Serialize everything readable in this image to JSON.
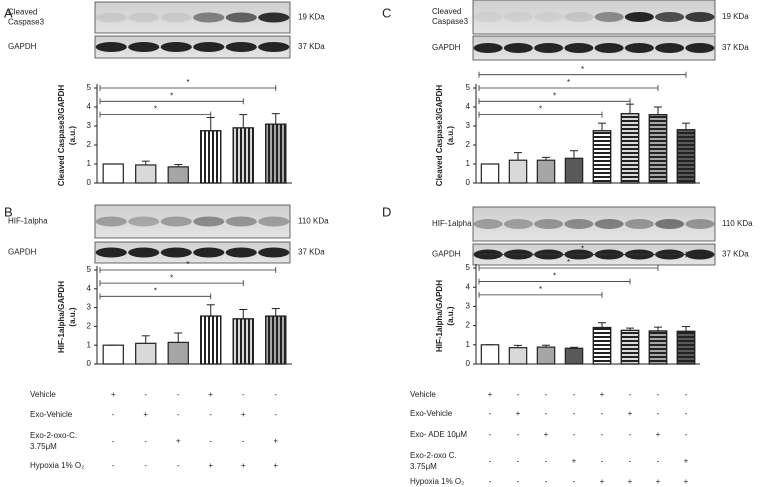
{
  "chart_data": [
    {
      "type": "bar",
      "panel": "A",
      "ylabel": "Cleaved Caspase3/GAPDH",
      "ylabel_unit": "(a.u.)",
      "categories": [
        null,
        null,
        null,
        null,
        null,
        null
      ],
      "values": [
        1,
        0.95,
        0.85,
        2.75,
        2.9,
        3.1
      ],
      "errors": [
        0,
        0.2,
        0.12,
        0.7,
        0.7,
        0.55
      ],
      "colors": [
        "#ffffff",
        "#d9d9d9",
        "#a6a6a6",
        "#ffffff",
        "#d9d9d9",
        "#a6a6a6"
      ],
      "hatched": [
        false,
        false,
        false,
        true,
        true,
        true
      ],
      "hatch": "vertical",
      "ylim": [
        0,
        5
      ],
      "yticks": [
        0,
        1,
        2,
        3,
        4,
        5
      ],
      "significance": [
        {
          "label": "*",
          "bars": [
            0,
            3
          ]
        },
        {
          "label": "*",
          "bars": [
            0,
            4
          ]
        },
        {
          "label": "*",
          "bars": [
            0,
            5
          ]
        }
      ],
      "blots": [
        {
          "label": [
            "Cleaved",
            "Caspase3"
          ],
          "size": "19 KDa"
        },
        {
          "label": [
            "GAPDH"
          ],
          "size": "37 KDa"
        }
      ]
    },
    {
      "type": "bar",
      "panel": "B",
      "ylabel": "HIF-1alpha/GAPDH",
      "ylabel_unit": "(a.u.)",
      "categories": [
        null,
        null,
        null,
        null,
        null,
        null
      ],
      "values": [
        1,
        1.1,
        1.15,
        2.55,
        2.4,
        2.55
      ],
      "errors": [
        0,
        0.4,
        0.5,
        0.6,
        0.5,
        0.4
      ],
      "colors": [
        "#ffffff",
        "#d9d9d9",
        "#a6a6a6",
        "#ffffff",
        "#d9d9d9",
        "#a6a6a6"
      ],
      "hatched": [
        false,
        false,
        false,
        true,
        true,
        true
      ],
      "hatch": "vertical",
      "ylim": [
        0,
        5
      ],
      "yticks": [
        0,
        1,
        2,
        3,
        4,
        5
      ],
      "significance": [
        {
          "label": "*",
          "bars": [
            0,
            3
          ]
        },
        {
          "label": "*",
          "bars": [
            0,
            4
          ]
        },
        {
          "label": "*",
          "bars": [
            0,
            5
          ]
        }
      ],
      "blots": [
        {
          "label": [
            "HIF-1alpha"
          ],
          "size": "110 KDa"
        },
        {
          "label": [
            "GAPDH"
          ],
          "size": "37 KDa"
        }
      ]
    },
    {
      "type": "bar",
      "panel": "C",
      "ylabel": "Cleaved Caspase3/GAPDH",
      "ylabel_unit": "(a.u.)",
      "categories": [
        null,
        null,
        null,
        null,
        null,
        null,
        null,
        null
      ],
      "values": [
        1,
        1.2,
        1.2,
        1.3,
        2.75,
        3.65,
        3.6,
        2.8
      ],
      "errors": [
        0,
        0.4,
        0.15,
        0.4,
        0.4,
        0.5,
        0.4,
        0.35
      ],
      "colors": [
        "#ffffff",
        "#d9d9d9",
        "#a6a6a6",
        "#595959",
        "#ffffff",
        "#d9d9d9",
        "#a6a6a6",
        "#595959"
      ],
      "hatched": [
        false,
        false,
        false,
        false,
        true,
        true,
        true,
        true
      ],
      "hatch": "horizontal",
      "ylim": [
        0,
        5
      ],
      "yticks": [
        0,
        1,
        2,
        3,
        4,
        5
      ],
      "significance": [
        {
          "label": "*",
          "bars": [
            0,
            4
          ]
        },
        {
          "label": "*",
          "bars": [
            0,
            5
          ]
        },
        {
          "label": "*",
          "bars": [
            0,
            6
          ]
        },
        {
          "label": "*",
          "bars": [
            0,
            7
          ]
        }
      ],
      "blots": [
        {
          "label": [
            "Cleaved",
            "Caspase3"
          ],
          "size": "19 KDa"
        },
        {
          "label": [
            "GAPDH"
          ],
          "size": "37 KDa"
        }
      ]
    },
    {
      "type": "bar",
      "panel": "D",
      "ylabel": "HIF-1alpha/GAPDH",
      "ylabel_unit": "(a.u.)",
      "categories": [
        null,
        null,
        null,
        null,
        null,
        null,
        null,
        null
      ],
      "values": [
        1,
        0.85,
        0.88,
        0.82,
        1.9,
        1.75,
        1.72,
        1.7
      ],
      "errors": [
        0,
        0.12,
        0.1,
        0.05,
        0.25,
        0.12,
        0.2,
        0.25
      ],
      "colors": [
        "#ffffff",
        "#d9d9d9",
        "#a6a6a6",
        "#595959",
        "#ffffff",
        "#d9d9d9",
        "#a6a6a6",
        "#595959"
      ],
      "hatched": [
        false,
        false,
        false,
        false,
        true,
        true,
        true,
        true
      ],
      "hatch": "horizontal",
      "ylim": [
        0,
        5
      ],
      "yticks": [
        0,
        1,
        2,
        3,
        4,
        5
      ],
      "significance": [
        {
          "label": "*",
          "bars": [
            0,
            4
          ]
        },
        {
          "label": "*",
          "bars": [
            0,
            5
          ]
        },
        {
          "label": "*",
          "bars": [
            0,
            6
          ]
        },
        {
          "label": "*",
          "bars": [
            0,
            7
          ]
        }
      ],
      "blots": [
        {
          "label": [
            "HIF-1alpha"
          ],
          "size": "110 KDa"
        },
        {
          "label": [
            "GAPDH"
          ],
          "size": "37 KDa"
        }
      ]
    }
  ],
  "treatments": [
    {
      "rows": [
        {
          "label": [
            "Vehicle"
          ],
          "marks": [
            "+",
            "-",
            "-",
            "+",
            "-",
            "-"
          ]
        },
        {
          "label": [
            "Exo-Vehicle"
          ],
          "marks": [
            "-",
            "+",
            "-",
            "-",
            "+",
            "-"
          ]
        },
        {
          "label": [
            "Exo-2-oxo-C.",
            "3.75μM"
          ],
          "marks": [
            "-",
            "-",
            "+",
            "-",
            "-",
            "+"
          ]
        },
        {
          "label": [
            "Hypoxia 1% O₂"
          ],
          "marks": [
            "-",
            "-",
            "-",
            "+",
            "+",
            "+"
          ]
        }
      ]
    },
    {
      "rows": [
        {
          "label": [
            "Vehicle"
          ],
          "marks": [
            "+",
            "-",
            "-",
            "-",
            "+",
            "-",
            "-",
            "-"
          ]
        },
        {
          "label": [
            "Exo-Vehicle"
          ],
          "marks": [
            "-",
            "+",
            "-",
            "-",
            "-",
            "+",
            "-",
            "-"
          ]
        },
        {
          "label": [
            "Exo- ADE 10μM"
          ],
          "marks": [
            "-",
            "-",
            "+",
            "-",
            "-",
            "-",
            "+",
            "-"
          ]
        },
        {
          "label": [
            "Exo-2-oxo C.",
            "3.75μM"
          ],
          "marks": [
            "-",
            "-",
            "-",
            "+",
            "-",
            "-",
            "-",
            "+"
          ]
        },
        {
          "label": [
            "Hypoxia 1% O₂"
          ],
          "marks": [
            "-",
            "-",
            "-",
            "-",
            "+",
            "+",
            "+",
            "+"
          ]
        }
      ]
    }
  ]
}
